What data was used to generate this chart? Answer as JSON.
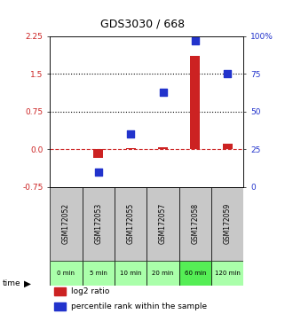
{
  "title": "GDS3030 / 668",
  "samples": [
    "GSM172052",
    "GSM172053",
    "GSM172055",
    "GSM172057",
    "GSM172058",
    "GSM172059"
  ],
  "time_labels": [
    "0 min",
    "5 min",
    "10 min",
    "20 min",
    "60 min",
    "120 min"
  ],
  "log2_ratio": [
    0.0,
    -0.18,
    0.02,
    0.04,
    1.85,
    0.1
  ],
  "percentile_rank": [
    null,
    10,
    35,
    63,
    97,
    75
  ],
  "ylim_left": [
    -0.75,
    2.25
  ],
  "ylim_right": [
    0,
    100
  ],
  "yticks_left": [
    -0.75,
    0.0,
    0.75,
    1.5,
    2.25
  ],
  "yticks_right": [
    0,
    25,
    50,
    75,
    100
  ],
  "hlines": [
    0.75,
    1.5
  ],
  "bar_color": "#cc2222",
  "dot_color": "#2233cc",
  "zero_line_color": "#cc2222",
  "hline_color": "#000000",
  "grid_bg": "#c8c8c8",
  "time_row_colors": [
    "#aaffaa",
    "#aaffaa",
    "#aaffaa",
    "#aaffaa",
    "#55ee55",
    "#aaffaa"
  ],
  "bar_width": 0.3,
  "dot_size": 40,
  "legend_items": [
    {
      "color": "#cc2222",
      "label": "log2 ratio"
    },
    {
      "color": "#2233cc",
      "label": "percentile rank within the sample"
    }
  ]
}
